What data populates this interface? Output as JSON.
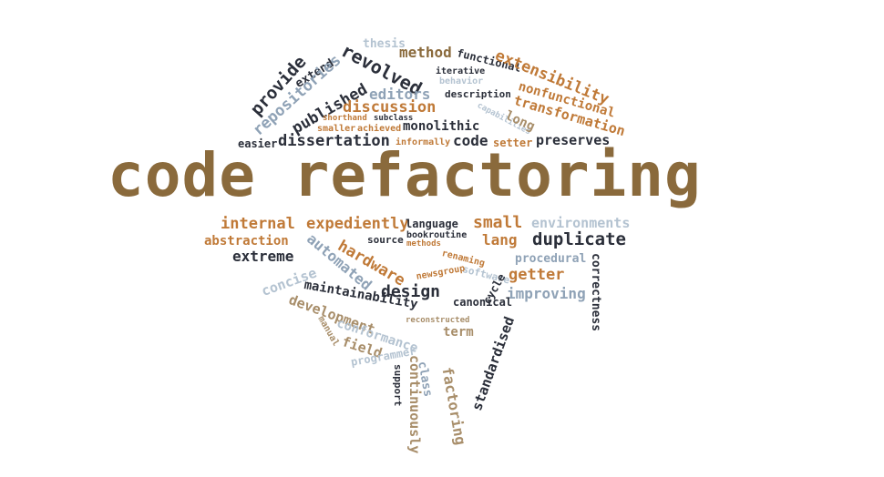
{
  "title": "code refactoring",
  "colors": {
    "dark": "#2b2f3a",
    "brown": "#8a6a3c",
    "orange": "#c07a38",
    "blue": "#8fa2b6",
    "lightblue": "#b4c3d1",
    "tan": "#a88e6a"
  },
  "words": [
    "thesis",
    "method",
    "functional",
    "extensibility",
    "provide",
    "extend",
    "revolved",
    "iterative",
    "behavior",
    "repositories",
    "published",
    "editors",
    "description",
    "nonfunctional",
    "capabilities",
    "transformation",
    "long",
    "discussion",
    "shorthand",
    "subclass",
    "smaller",
    "achieved",
    "monolithic",
    "easier",
    "dissertation",
    "informally",
    "code",
    "setter",
    "preserves",
    "internal",
    "expediently",
    "language",
    "small",
    "environments",
    "abstraction",
    "bookroutine",
    "source",
    "methods",
    "lang",
    "duplicate",
    "extreme",
    "hardware",
    "concise",
    "automated",
    "renaming",
    "software",
    "procedural",
    "getter",
    "correctness",
    "maintainability",
    "design",
    "newsgroup",
    "cycle",
    "improving",
    "canonical",
    "development",
    "conformance",
    "reconstructed",
    "term",
    "standardised",
    "manual",
    "field",
    "programmer",
    "class",
    "factoring",
    "support",
    "continuously"
  ]
}
